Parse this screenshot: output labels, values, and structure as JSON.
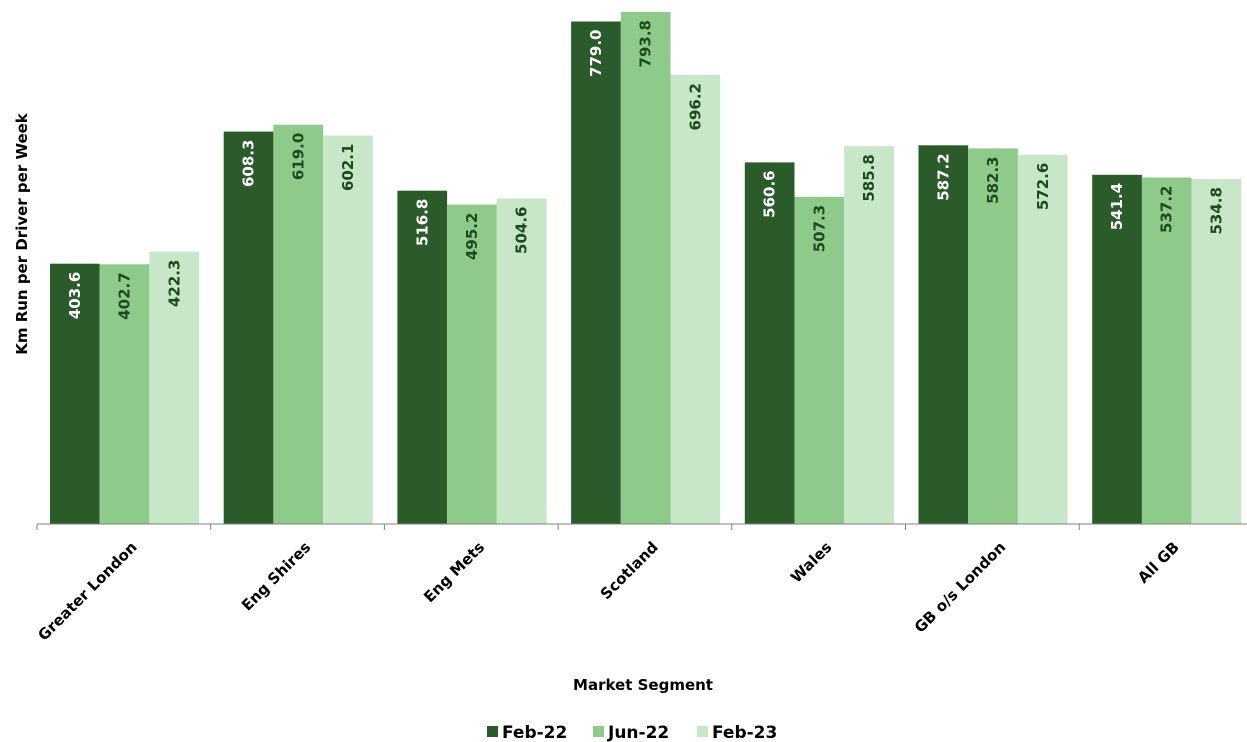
{
  "chart_data": {
    "type": "bar",
    "categories": [
      "Greater London",
      "Eng Shires",
      "Eng Mets",
      "Scotland",
      "Wales",
      "GB o/s London",
      "All GB"
    ],
    "series": [
      {
        "name": "Feb-22",
        "color": "#2b5a2b",
        "label_color": "#ffffff",
        "values": [
          403.6,
          608.3,
          516.8,
          779.0,
          560.6,
          587.2,
          541.4
        ]
      },
      {
        "name": "Jun-22",
        "color": "#8ecb8b",
        "label_color": "#1e4a1e",
        "values": [
          402.7,
          619.0,
          495.2,
          793.8,
          507.3,
          582.3,
          537.2
        ]
      },
      {
        "name": "Feb-23",
        "color": "#c8e6c8",
        "label_color": "#1e4a1e",
        "values": [
          422.3,
          602.1,
          504.6,
          696.2,
          585.8,
          572.6,
          534.8
        ]
      }
    ],
    "xlabel": "Market Segment",
    "ylabel": "Km Run per Driver per Week",
    "ylim": [
      0,
      810
    ],
    "grid": false,
    "legend": "bottom",
    "data_labels": "inside-end-rotated"
  }
}
